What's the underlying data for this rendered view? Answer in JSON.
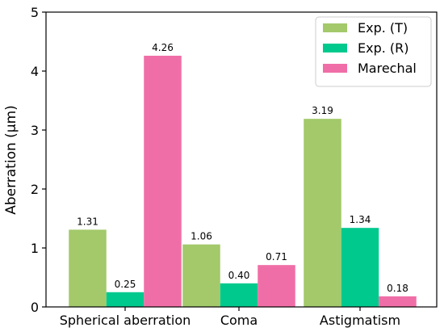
{
  "chart_data": {
    "type": "bar",
    "categories": [
      "Spherical aberration",
      "Coma",
      "Astigmatism"
    ],
    "series": [
      {
        "name": "Exp. (T)",
        "values": [
          1.31,
          1.06,
          3.19
        ],
        "color": "#a3c96a"
      },
      {
        "name": "Exp. (R)",
        "values": [
          0.25,
          0.4,
          1.34
        ],
        "color": "#00c98d"
      },
      {
        "name": "Marechal",
        "values": [
          4.26,
          0.71,
          0.18
        ],
        "color": "#f06ea7"
      }
    ],
    "data_labels": [
      [
        "1.31",
        "1.06",
        "3.19"
      ],
      [
        "0.25",
        "0.40",
        "1.34"
      ],
      [
        "4.26",
        "0.71",
        "0.18"
      ]
    ],
    "xlabel": "",
    "ylabel": "Aberration (μm)",
    "ylim": [
      0,
      5
    ],
    "yticks": [
      "0",
      "1",
      "2",
      "3",
      "4",
      "5"
    ],
    "grid": false,
    "legend_position": "top-right"
  }
}
